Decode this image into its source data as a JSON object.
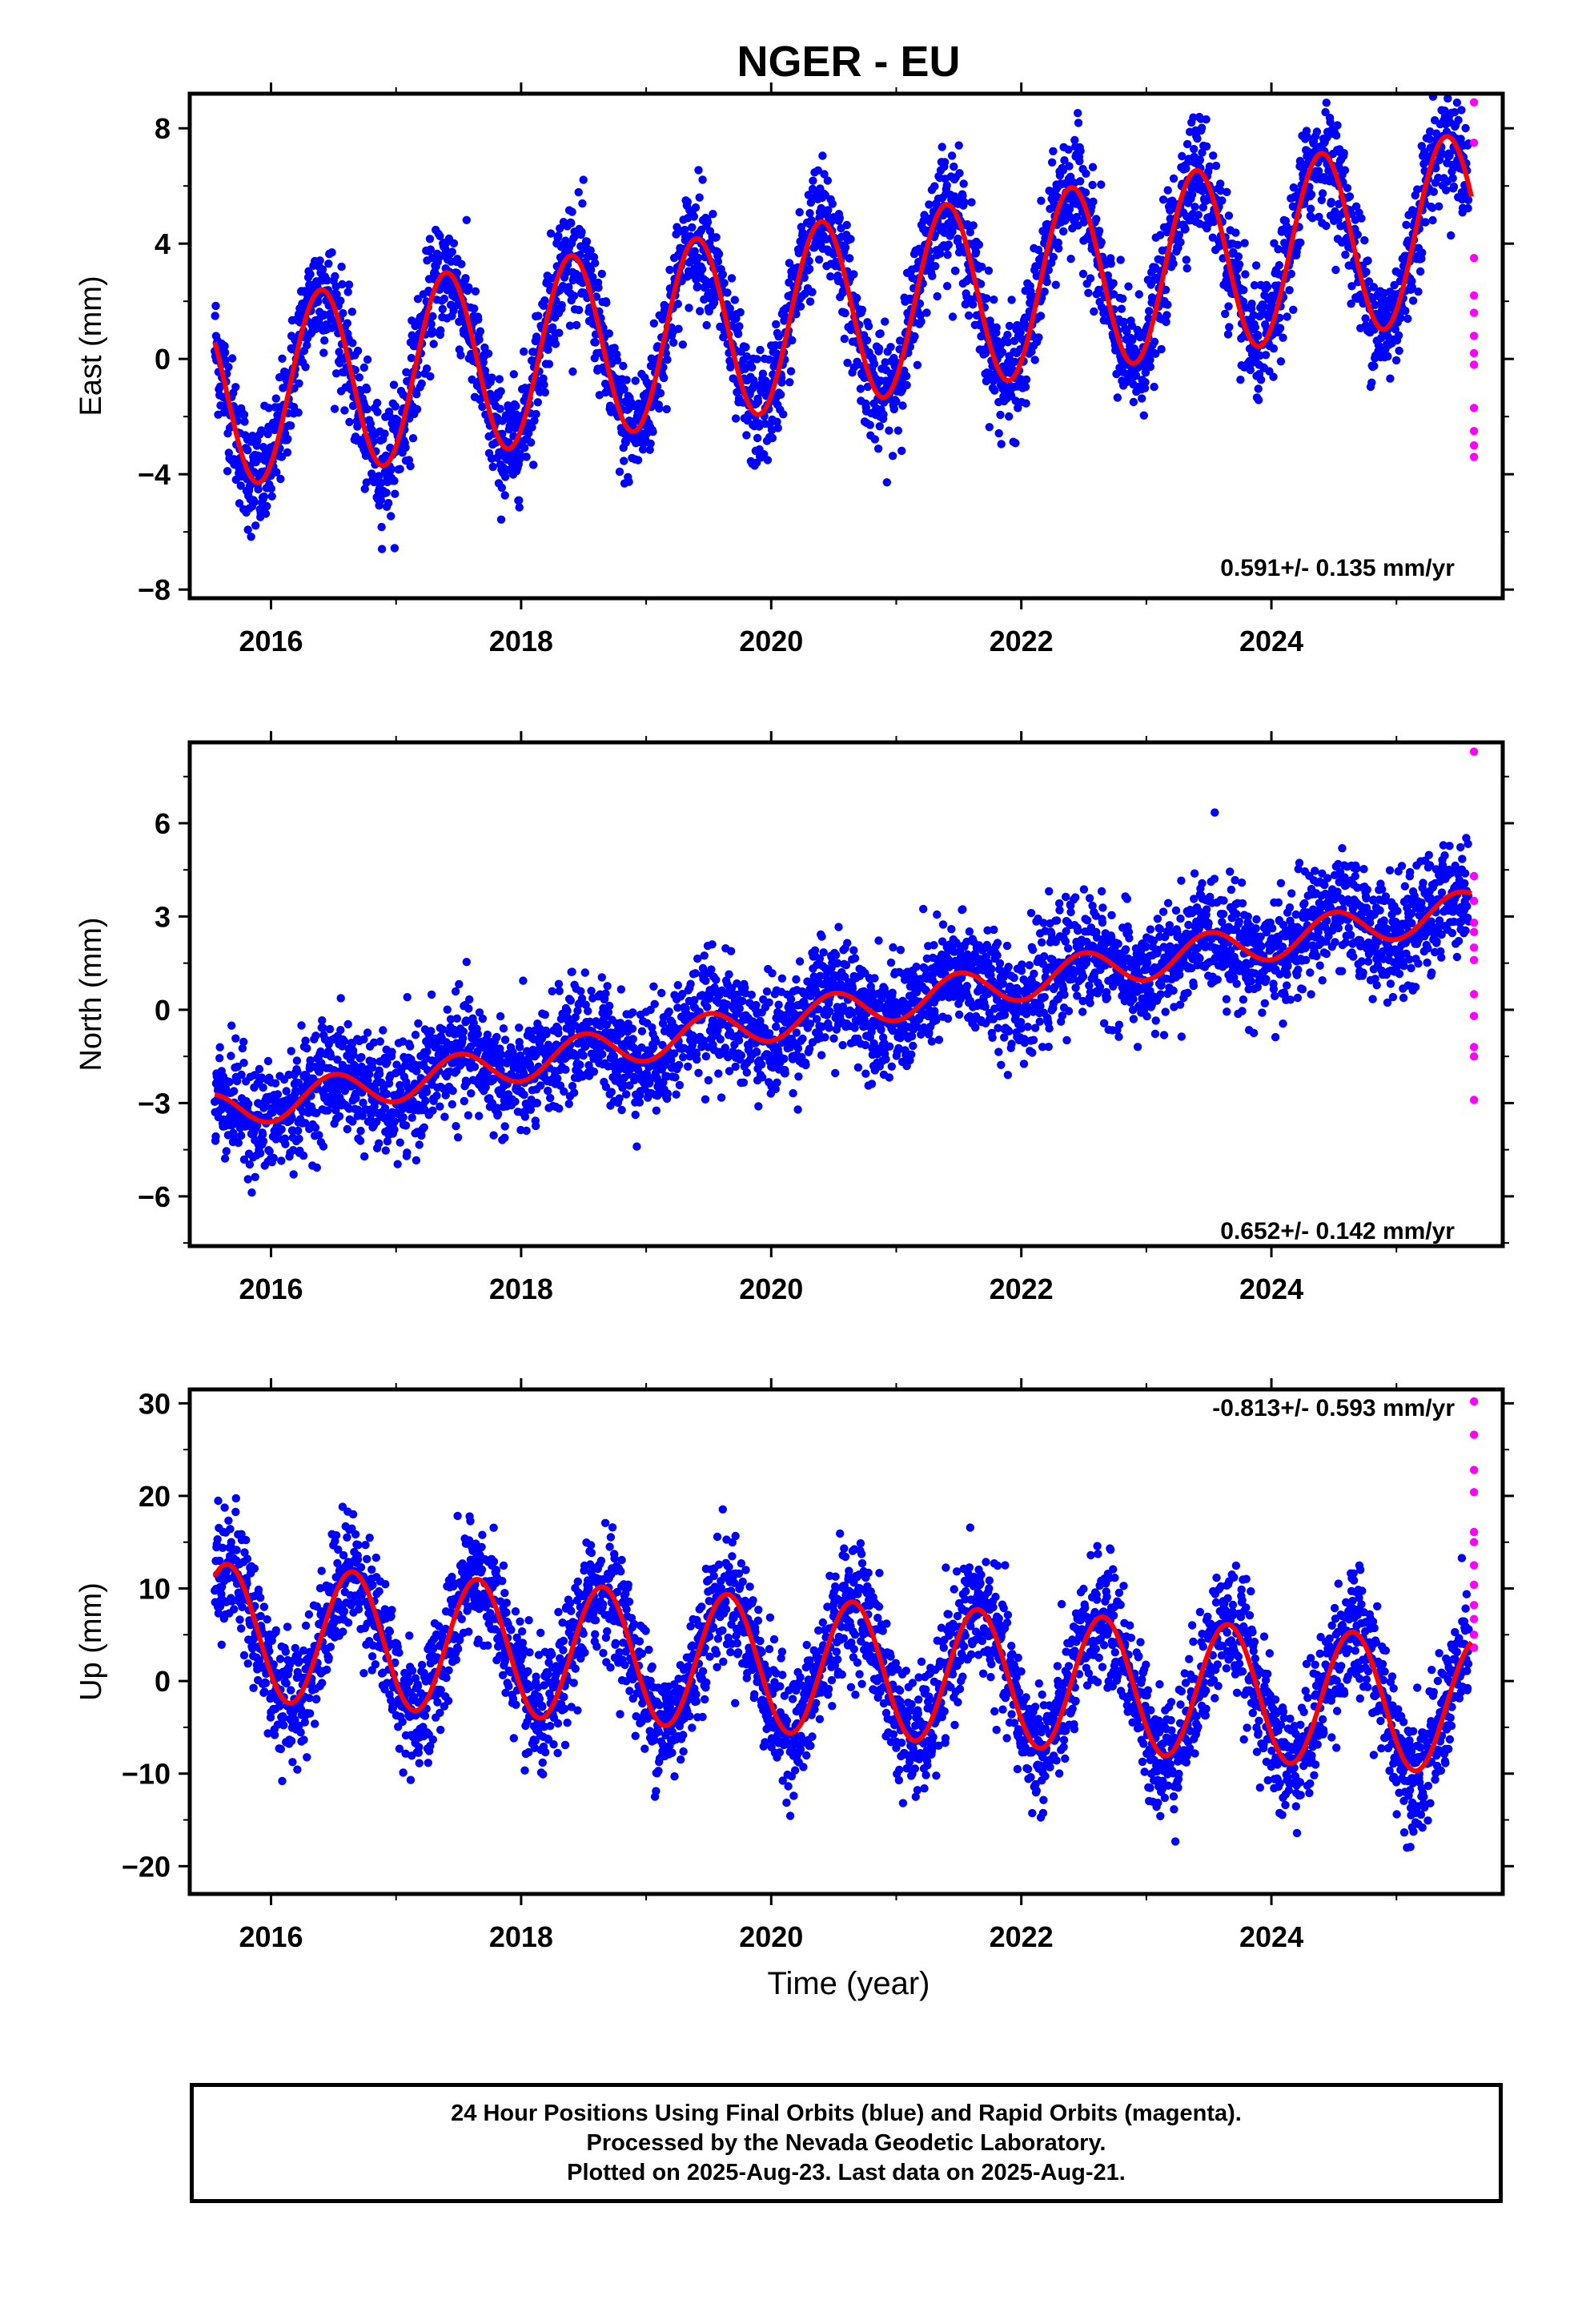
{
  "title": "NGER - EU",
  "colors": {
    "final_orbits": "#0000ff",
    "rapid_orbits": "#ff00ff",
    "model": "#ff0000",
    "axis": "#000000"
  },
  "xaxis": {
    "label": "Time (year)",
    "ticks": [
      "2016",
      "2018",
      "2020",
      "2022",
      "2024"
    ]
  },
  "panels": [
    {
      "ylabel": "East (mm)",
      "ticks": [
        "8",
        "4",
        "0",
        "−4",
        "−8"
      ],
      "rate": "0.591+/- 0.135 mm/yr"
    },
    {
      "ylabel": "North (mm)",
      "ticks": [
        "6",
        "3",
        "0",
        "−3",
        "−6"
      ],
      "rate": "0.652+/- 0.142 mm/yr"
    },
    {
      "ylabel": "Up (mm)",
      "ticks": [
        "30",
        "20",
        "10",
        "0",
        "−10",
        "−20"
      ],
      "rate": "-0.813+/- 0.593 mm/yr"
    }
  ],
  "footer": [
    "24 Hour Positions Using Final Orbits (blue) and Rapid Orbits (magenta).",
    "Processed by the Nevada Geodetic Laboratory.",
    "Plotted on 2025-Aug-23. Last data on 2025-Aug-21."
  ],
  "chart_data": [
    {
      "type": "scatter",
      "title": "NGER - EU",
      "xlabel": "",
      "ylabel": "East (mm)",
      "xlim": [
        2015.35,
        2025.85
      ],
      "ylim": [
        -8.3,
        9.2
      ],
      "x_ticks": [
        2016,
        2018,
        2020,
        2022,
        2024
      ],
      "y_ticks": [
        8,
        4,
        0,
        -4,
        -8
      ],
      "rate_mm_per_yr": 0.591,
      "rate_sigma": 0.135,
      "model": {
        "offset": -1.3,
        "rate": 0.591,
        "x_ref": 2015.55,
        "amplitude": 3.2,
        "phase_peak": 2016.4
      },
      "model_curve": {
        "x": [
          2015.55,
          2015.9,
          2016.4,
          2016.9,
          2017.4,
          2017.9,
          2018.4,
          2018.9,
          2019.4,
          2019.9,
          2020.4,
          2020.9,
          2021.4,
          2021.9,
          2022.4,
          2022.9,
          2023.4,
          2023.9,
          2024.4,
          2024.9,
          2025.4,
          2025.6
        ],
        "y": [
          -1.3,
          -6.0,
          0.4,
          -5.5,
          1.0,
          -4.9,
          1.6,
          -4.3,
          2.2,
          -3.7,
          2.7,
          -3.1,
          3.3,
          -2.5,
          3.9,
          -1.9,
          4.5,
          -1.3,
          5.1,
          -0.7,
          5.7,
          3.3
        ]
      },
      "final_orbits_scatter_sd": 1.0,
      "rapid_orbits": {
        "x": [
          2025.62,
          2025.62,
          2025.62,
          2025.62,
          2025.62,
          2025.62,
          2025.62,
          2025.62,
          2025.62,
          2025.62,
          2025.62,
          2025.62
        ],
        "y": [
          8.9,
          7.5,
          3.5,
          2.2,
          1.6,
          0.8,
          0.2,
          -0.2,
          -1.7,
          -2.5,
          -3.0,
          -3.4
        ]
      }
    },
    {
      "type": "scatter",
      "xlabel": "",
      "ylabel": "North (mm)",
      "xlim": [
        2015.35,
        2025.85
      ],
      "ylim": [
        -7.6,
        8.6
      ],
      "x_ticks": [
        2016,
        2018,
        2020,
        2022,
        2024
      ],
      "y_ticks": [
        6,
        3,
        0,
        -3,
        -6
      ],
      "rate_mm_per_yr": 0.652,
      "rate_sigma": 0.142,
      "model": {
        "offset": -3.3,
        "rate": 0.652,
        "x_ref": 2015.55,
        "amplitude": 0.6,
        "phase_peak": 2016.5
      },
      "model_curve": {
        "x": [
          2015.55,
          2015.9,
          2016.5,
          2017.0,
          2017.5,
          2018.0,
          2018.5,
          2019.0,
          2019.5,
          2020.0,
          2020.5,
          2021.0,
          2021.5,
          2022.0,
          2022.5,
          2023.0,
          2023.5,
          2024.0,
          2024.5,
          2025.0,
          2025.4,
          2025.6
        ],
        "y": [
          -2.9,
          -3.5,
          -1.9,
          -3.0,
          -1.2,
          -2.4,
          -0.6,
          -1.6,
          0.1,
          -1.0,
          0.8,
          -0.4,
          1.4,
          0.3,
          2.1,
          0.9,
          2.7,
          1.6,
          3.4,
          2.2,
          4.0,
          3.2
        ]
      },
      "final_orbits_scatter_sd": 0.9,
      "rapid_orbits": {
        "x": [
          2025.62,
          2025.62,
          2025.62,
          2025.62,
          2025.62,
          2025.62,
          2025.62,
          2025.62,
          2025.62,
          2025.62,
          2025.62,
          2025.62
        ],
        "y": [
          8.3,
          4.3,
          3.5,
          2.8,
          2.5,
          2.0,
          1.6,
          0.5,
          -0.2,
          -1.2,
          -1.5,
          -2.9
        ]
      }
    },
    {
      "type": "scatter",
      "xlabel": "Time (year)",
      "ylabel": "Up (mm)",
      "xlim": [
        2015.35,
        2025.85
      ],
      "ylim": [
        -23.0,
        31.5
      ],
      "x_ticks": [
        2016,
        2018,
        2020,
        2022,
        2024
      ],
      "y_ticks": [
        30,
        20,
        10,
        0,
        -10,
        -20
      ],
      "rate_mm_per_yr": -0.813,
      "rate_sigma": 0.593,
      "model": {
        "offset": 5.4,
        "rate": -0.813,
        "x_ref": 2015.55,
        "amplitude": 7.3,
        "phase_peak": 2015.65
      },
      "model_curve": {
        "x": [
          2015.55,
          2015.65,
          2016.15,
          2016.65,
          2017.15,
          2017.65,
          2018.15,
          2018.65,
          2019.15,
          2019.65,
          2020.15,
          2020.65,
          2021.15,
          2021.65,
          2022.15,
          2022.65,
          2023.15,
          2023.65,
          2024.15,
          2024.65,
          2025.15,
          2025.6
        ],
        "y": [
          12.2,
          12.6,
          -2.4,
          12.2,
          -3.1,
          11.4,
          -4.0,
          10.4,
          -4.8,
          9.6,
          -5.6,
          8.8,
          -6.4,
          8.0,
          -7.2,
          7.2,
          -8.0,
          6.4,
          -8.9,
          5.6,
          -9.7,
          3.9
        ]
      },
      "final_orbits_scatter_sd": 3.3,
      "rapid_orbits": {
        "x": [
          2025.62,
          2025.62,
          2025.62,
          2025.62,
          2025.62,
          2025.62,
          2025.62,
          2025.62,
          2025.62,
          2025.62,
          2025.62,
          2025.62
        ],
        "y": [
          30.2,
          26.6,
          22.8,
          20.4,
          16.1,
          15.0,
          12.5,
          10.4,
          8.2,
          6.7,
          5.0,
          3.6
        ]
      }
    }
  ]
}
